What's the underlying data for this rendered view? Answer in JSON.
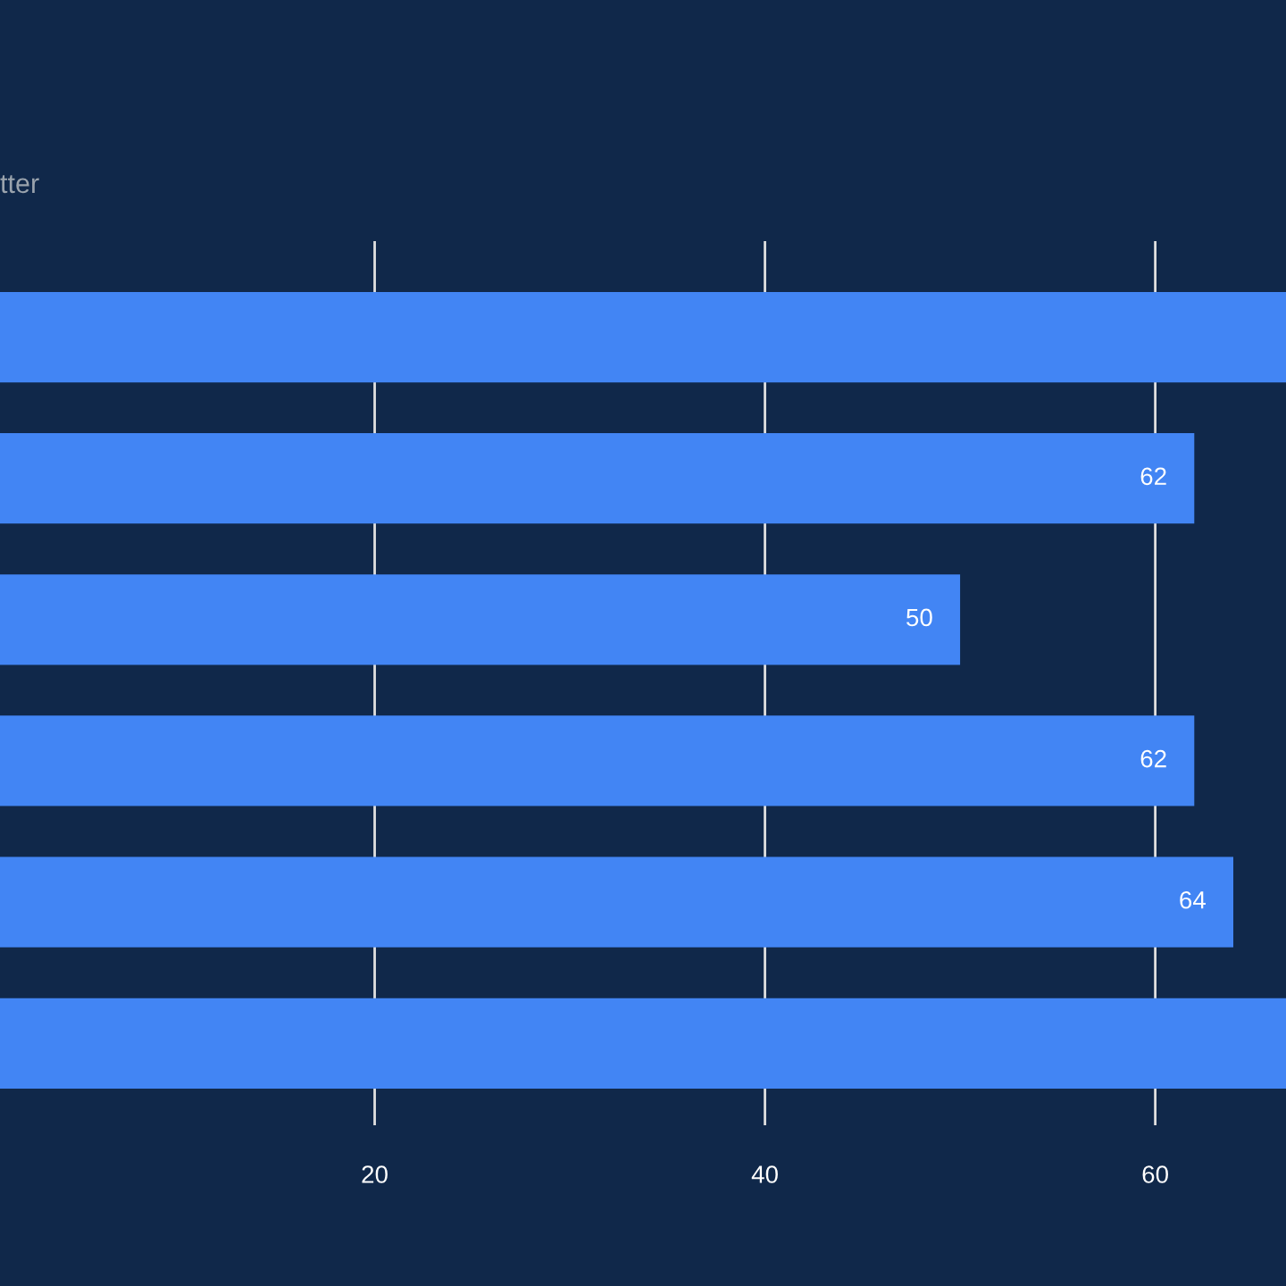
{
  "chart_data": {
    "type": "bar",
    "orientation": "horizontal",
    "subtitle": "tter",
    "categories": [
      null,
      null,
      null,
      null,
      null,
      null
    ],
    "values": [
      66.7,
      62,
      50,
      62,
      64,
      66.7
    ],
    "value_labels": [
      null,
      "62",
      "50",
      "62",
      "64",
      null
    ],
    "color": "#4285f4",
    "xlim": [
      0.8,
      66.7
    ],
    "xticks": [
      20,
      40,
      60
    ],
    "grid": "x"
  }
}
